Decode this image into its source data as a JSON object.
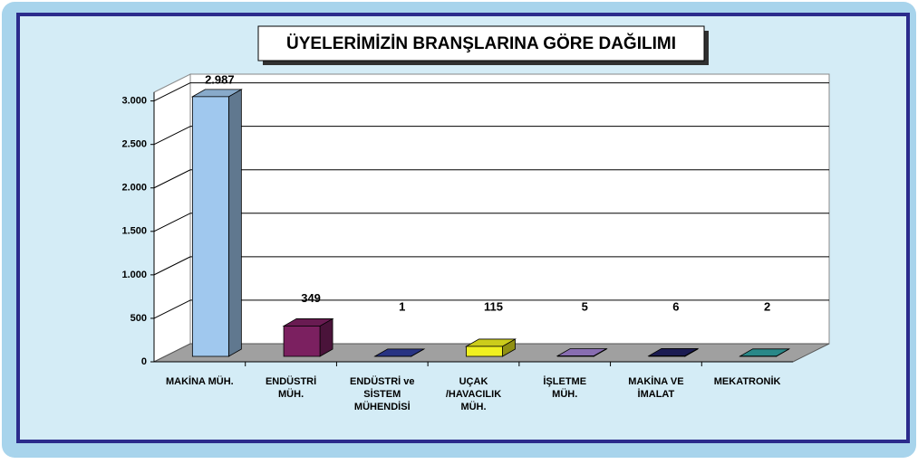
{
  "chart_data": {
    "type": "bar3d",
    "title": "ÜYELERİMİZİN BRANŞLARINA GÖRE DAĞILIMI",
    "categories": [
      [
        "MAKİNA MÜH."
      ],
      [
        "ENDÜSTRİ",
        "MÜH."
      ],
      [
        "ENDÜSTRİ  ve",
        "SİSTEM",
        "MÜHENDİSİ"
      ],
      [
        "UÇAK",
        "/HAVACILIK",
        "MÜH."
      ],
      [
        "İŞLETME",
        "MÜH."
      ],
      [
        "MAKİNA VE",
        "İMALAT"
      ],
      [
        "MEKATRONİK"
      ]
    ],
    "values": [
      2987,
      349,
      1,
      115,
      5,
      6,
      2
    ],
    "value_labels": [
      "2.987",
      "349",
      "1",
      "115",
      "5",
      "6",
      "2"
    ],
    "colors": [
      "#a0c8ee",
      "#7b2060",
      "#2f3c9a",
      "#f0f020",
      "#a080d0",
      "#202060",
      "#30a0a0"
    ],
    "ylim": [
      0,
      3100
    ],
    "yticks": [
      0,
      500,
      {
        "value": 1000,
        "label": "1.000"
      },
      {
        "value": 1500,
        "label": "1.500"
      },
      {
        "value": 2000,
        "label": "2.000"
      },
      {
        "value": 2500,
        "label": "2.500"
      },
      {
        "value": 3000,
        "label": "3.000"
      }
    ],
    "grid": true
  }
}
